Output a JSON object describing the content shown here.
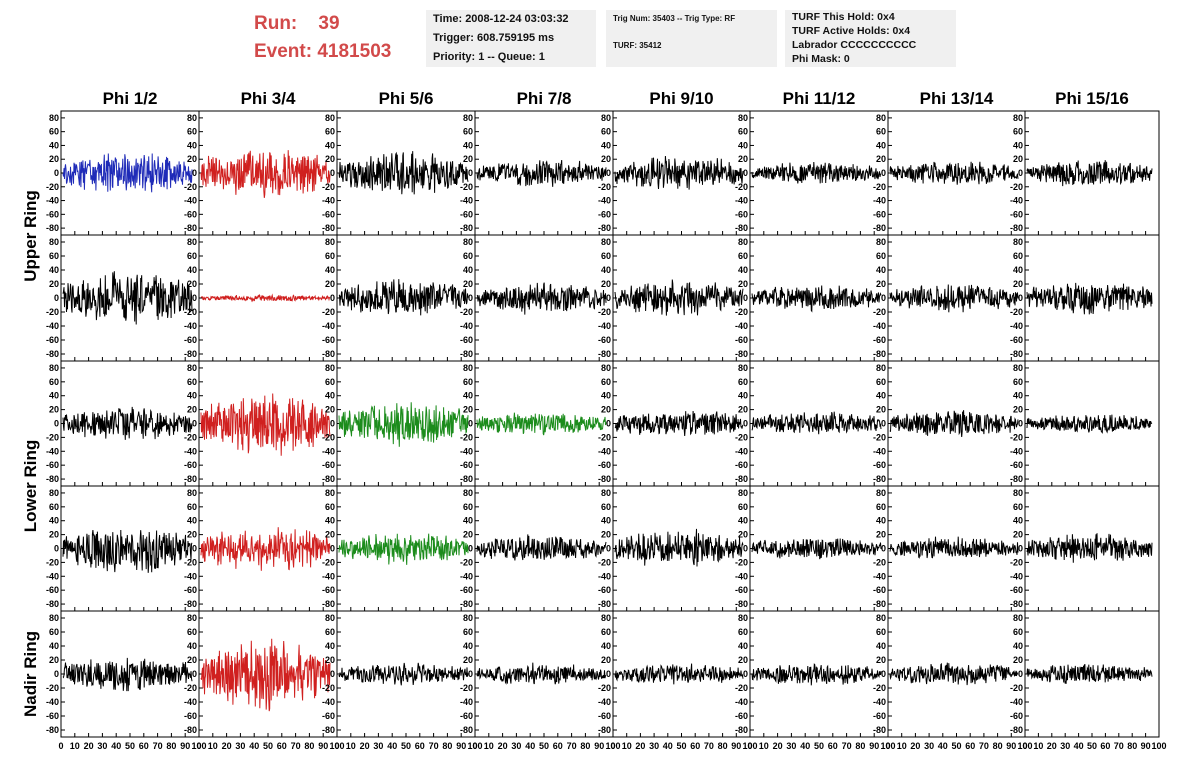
{
  "header": {
    "run_label": "Run:",
    "run_value": "39",
    "event_label": "Event:",
    "event_value": "4181503"
  },
  "info_boxes": {
    "time": "Time: 2008-12-24 03:03:32",
    "trigger": "Trigger: 608.759195 ms",
    "priority": "Priority: 1 -- Queue: 1",
    "trig_num": "Trig Num: 35403 -- Trig Type: RF",
    "turf": "TURF: 35412",
    "turf_this_hold": "TURF This Hold: 0x4",
    "turf_active_holds": "TURF Active Holds: 0x4",
    "labrador": "Labrador CCCCCCCCCC",
    "phi_mask": "Phi Mask: 0"
  },
  "chart_data": {
    "type": "line",
    "columns": [
      "Phi 1/2",
      "Phi 3/4",
      "Phi 5/6",
      "Phi 7/8",
      "Phi 9/10",
      "Phi 11/12",
      "Phi 13/14",
      "Phi 15/16"
    ],
    "ring_labels": [
      {
        "label": "Upper Ring",
        "rows": [
          0,
          1
        ]
      },
      {
        "label": "Lower Ring",
        "rows": [
          2,
          3
        ]
      },
      {
        "label": "Nadir Ring",
        "rows": [
          4
        ]
      }
    ],
    "xlim": [
      0,
      100
    ],
    "ylim": [
      -90,
      90
    ],
    "y_ticks": [
      80,
      60,
      40,
      20,
      0,
      -20,
      -40,
      -60,
      -80
    ],
    "y_tick_labels": [
      "80",
      "60",
      "40",
      "20",
      "0",
      "-20",
      "-40",
      "-60",
      "-80"
    ],
    "x_ticks": [
      0,
      10,
      20,
      30,
      40,
      50,
      60,
      70,
      80,
      90,
      100
    ],
    "x_tick_labels": [
      "0",
      "10",
      "20",
      "30",
      "40",
      "50",
      "60",
      "70",
      "80",
      "90",
      "100"
    ],
    "colors": {
      "black": "#000000",
      "red": "#d0201f",
      "green": "#1c8c1c",
      "blue": "#1f2bb8"
    },
    "panels": [
      [
        {
          "color": "blue",
          "amp": 26,
          "seed": 11
        },
        {
          "color": "red",
          "amp": 32,
          "seed": 12
        },
        {
          "color": "black",
          "amp": 27,
          "seed": 13
        },
        {
          "color": "black",
          "amp": 17,
          "seed": 14
        },
        {
          "color": "black",
          "amp": 22,
          "seed": 15
        },
        {
          "color": "black",
          "amp": 14,
          "seed": 16
        },
        {
          "color": "black",
          "amp": 16,
          "seed": 17
        },
        {
          "color": "black",
          "amp": 17,
          "seed": 18
        }
      ],
      [
        {
          "color": "black",
          "amp": 32,
          "seed": 21
        },
        {
          "color": "red",
          "amp": 4,
          "seed": 22
        },
        {
          "color": "black",
          "amp": 22,
          "seed": 23
        },
        {
          "color": "black",
          "amp": 20,
          "seed": 24
        },
        {
          "color": "black",
          "amp": 22,
          "seed": 25
        },
        {
          "color": "black",
          "amp": 16,
          "seed": 26
        },
        {
          "color": "black",
          "amp": 18,
          "seed": 27
        },
        {
          "color": "black",
          "amp": 20,
          "seed": 28
        }
      ],
      [
        {
          "color": "black",
          "amp": 20,
          "seed": 31
        },
        {
          "color": "red",
          "amp": 38,
          "seed": 32
        },
        {
          "color": "green",
          "amp": 28,
          "seed": 33
        },
        {
          "color": "green",
          "amp": 14,
          "seed": 34
        },
        {
          "color": "black",
          "amp": 17,
          "seed": 35
        },
        {
          "color": "black",
          "amp": 15,
          "seed": 36
        },
        {
          "color": "black",
          "amp": 17,
          "seed": 37
        },
        {
          "color": "black",
          "amp": 12,
          "seed": 38
        }
      ],
      [
        {
          "color": "black",
          "amp": 30,
          "seed": 41
        },
        {
          "color": "red",
          "amp": 28,
          "seed": 42
        },
        {
          "color": "green",
          "amp": 19,
          "seed": 43
        },
        {
          "color": "black",
          "amp": 17,
          "seed": 44
        },
        {
          "color": "black",
          "amp": 23,
          "seed": 45
        },
        {
          "color": "black",
          "amp": 14,
          "seed": 46
        },
        {
          "color": "black",
          "amp": 14,
          "seed": 47
        },
        {
          "color": "black",
          "amp": 18,
          "seed": 48
        }
      ],
      [
        {
          "color": "black",
          "amp": 22,
          "seed": 51
        },
        {
          "color": "red",
          "amp": 42,
          "seed": 52
        },
        {
          "color": "black",
          "amp": 14,
          "seed": 53
        },
        {
          "color": "black",
          "amp": 13,
          "seed": 54
        },
        {
          "color": "black",
          "amp": 13,
          "seed": 55
        },
        {
          "color": "black",
          "amp": 14,
          "seed": 56
        },
        {
          "color": "black",
          "amp": 14,
          "seed": 57
        },
        {
          "color": "black",
          "amp": 13,
          "seed": 58
        }
      ]
    ]
  }
}
